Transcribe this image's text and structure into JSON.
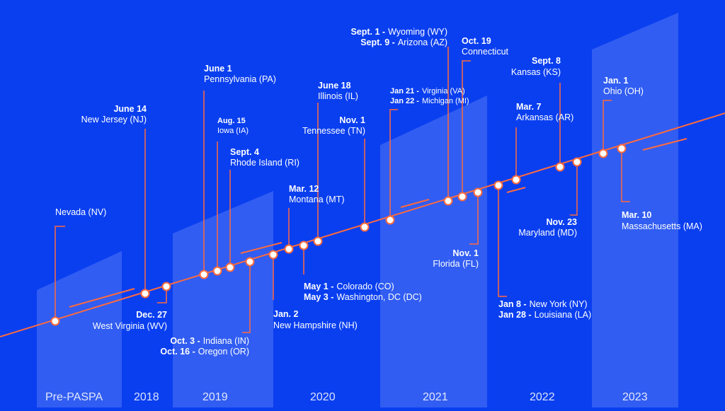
{
  "years": [
    "Pre-PASPA",
    "2018",
    "2019",
    "2020",
    "2021",
    "2022",
    "2023"
  ],
  "colors": {
    "background": "#0a3ff0",
    "line": "#ff6a3d",
    "band": "#ffffff"
  },
  "events": [
    {
      "date": "",
      "state": "Nevada (NV)"
    },
    {
      "date": "June 14",
      "state": "New Jersey (NJ)"
    },
    {
      "date": "Dec. 27",
      "state": "West Virginia (WV)"
    },
    {
      "date": "June 1",
      "state": "Pennsylvania (PA)"
    },
    {
      "date": "Aug. 15",
      "state": "Iowa (IA)"
    },
    {
      "date": "Sept. 4",
      "state": "Rhode Island (RI)"
    },
    {
      "date": "Oct. 3 -",
      "state": "Indiana (IN)"
    },
    {
      "date": "Oct. 16 -",
      "state": "Oregon (OR)"
    },
    {
      "date": "Jan. 2",
      "state": "New Hampshire (NH)"
    },
    {
      "date": "Mar. 12",
      "state": "Montana (MT)"
    },
    {
      "date": "May 1 -",
      "state": "Colorado (CO)"
    },
    {
      "date": "May 3 -",
      "state": "Washington, DC (DC)"
    },
    {
      "date": "June 18",
      "state": "Illinois (IL)"
    },
    {
      "date": "Nov. 1",
      "state": "Tennessee (TN)"
    },
    {
      "date": "Sept. 1 -",
      "state": "Wyoming (WY)"
    },
    {
      "date": "Sept. 9 -",
      "state": "Arizona (AZ)"
    },
    {
      "date": "Jan 21 -",
      "state": "Virginia (VA)"
    },
    {
      "date": "Jan 22 -",
      "state": "Michigan (MI)"
    },
    {
      "date": "Oct. 19",
      "state": "Connecticut"
    },
    {
      "date": "Nov. 1",
      "state": "Florida (FL)"
    },
    {
      "date": "Jan 8 -",
      "state": "New York (NY)"
    },
    {
      "date": "Jan 28 -",
      "state": "Louisiana (LA)"
    },
    {
      "date": "Mar. 7",
      "state": "Arkansas (AR)"
    },
    {
      "date": "Sept. 8",
      "state": "Kansas (KS)"
    },
    {
      "date": "Nov. 23",
      "state": "Maryland (MD)"
    },
    {
      "date": "Jan. 1",
      "state": "Ohio (OH)"
    },
    {
      "date": "Mar. 10",
      "state": "Massachusetts (MA)"
    }
  ]
}
